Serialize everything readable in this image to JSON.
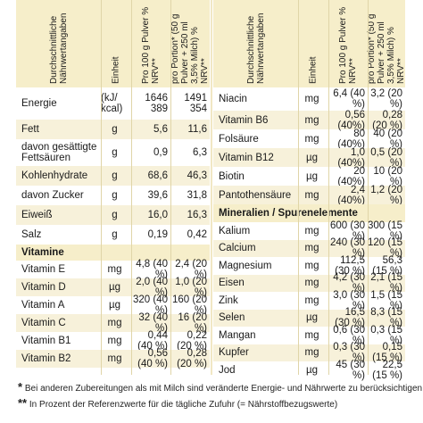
{
  "headers": {
    "name": "Durchschnittliche Nährwertangaben",
    "unit": "Einheit",
    "per100": "Pro 100 g Pulver % NRV**",
    "portion": "pro Portion* (50 g Pulver + 250 ml 3,5% Milch) % NRV**"
  },
  "left": {
    "rows": [
      {
        "name": "Energie",
        "unit": "(kJ/ kcal)",
        "v100": "1646\n389",
        "vp": "1491\n354"
      },
      {
        "name": "Fett",
        "unit": "g",
        "v100": "5,6",
        "vp": "11,6"
      },
      {
        "name": "davon gesättigte Fettsäuren",
        "unit": "g",
        "v100": "0,9",
        "vp": "6,3"
      },
      {
        "name": "Kohlenhydrate",
        "unit": "g",
        "v100": "68,6",
        "vp": "46,3"
      },
      {
        "name": "davon Zucker",
        "unit": "g",
        "v100": "39,6",
        "vp": "31,8"
      },
      {
        "name": "Eiweiß",
        "unit": "g",
        "v100": "16,0",
        "vp": "16,3"
      },
      {
        "name": "Salz",
        "unit": "g",
        "v100": "0,19",
        "vp": "0,42"
      }
    ],
    "section": "Vitamine",
    "vitamins": [
      {
        "name": "Vitamin E",
        "unit": "mg",
        "v100": "4,8 (40 %)",
        "vp": "2,4 (20 %)"
      },
      {
        "name": "Vitamin D",
        "unit": "µg",
        "v100": "2,0 (40 %)",
        "vp": "1,0 (20 %)"
      },
      {
        "name": "Vitamin A",
        "unit": "µg",
        "v100": "320 (40 %)",
        "vp": "160 (20 %)"
      },
      {
        "name": "Vitamin C",
        "unit": "mg",
        "v100": "32 (40 %)",
        "vp": "16 (20 %)"
      },
      {
        "name": "Vitamin B1",
        "unit": "mg",
        "v100": "0,44 (40 %)",
        "vp": "0,22 (20 %)"
      },
      {
        "name": "Vitamin B2",
        "unit": "mg",
        "v100": "0,56 (40 %)",
        "vp": "0,28 (20 %)"
      }
    ]
  },
  "right": {
    "rows": [
      {
        "name": "Niacin",
        "unit": "mg",
        "v100": "6,4 (40 %)",
        "vp": "3,2 (20 %)"
      },
      {
        "name": "Vitamin B6",
        "unit": "mg",
        "v100": "0,56 (40%)",
        "vp": "0,28 (20 %)"
      },
      {
        "name": "Folsäure",
        "unit": "mg",
        "v100": "80 (40%)",
        "vp": "40 (20 %)"
      },
      {
        "name": "Vitamin B12",
        "unit": "µg",
        "v100": "1,0 (40%)",
        "vp": "0,5 (20 %)"
      },
      {
        "name": "Biotin",
        "unit": "µg",
        "v100": "20 (40%)",
        "vp": "10 (20 %)"
      },
      {
        "name": "Pantothensäure",
        "unit": "mg",
        "v100": "2,4 (40%)",
        "vp": "1,2 (20 %)"
      }
    ],
    "section": "Mineralien / Spurenelemente",
    "minerals": [
      {
        "name": "Kalium",
        "unit": "mg",
        "v100": "600 (30 %)",
        "vp": "300 (15 %)"
      },
      {
        "name": "Calcium",
        "unit": "mg",
        "v100": "240 (30 %)",
        "vp": "120 (15 %)"
      },
      {
        "name": "Magnesium",
        "unit": "mg",
        "v100": "112,5 (30 %)",
        "vp": "56,3 (15 %)"
      },
      {
        "name": "Eisen",
        "unit": "mg",
        "v100": "4,2 (30 %)",
        "vp": "2,1 (15 %)"
      },
      {
        "name": "Zink",
        "unit": "mg",
        "v100": "3,0 (30 %)",
        "vp": "1,5 (15 %)"
      },
      {
        "name": "Selen",
        "unit": "µg",
        "v100": "16,5 (30 %)",
        "vp": "8,3 (15 %)"
      },
      {
        "name": "Mangan",
        "unit": "mg",
        "v100": "0,6 (30 %)",
        "vp": "0,3 (15 %)"
      },
      {
        "name": "Kupfer",
        "unit": "mg",
        "v100": "0,3 (30 %)",
        "vp": "0,15 (15 %)"
      },
      {
        "name": "Jod",
        "unit": "µg",
        "v100": "45 (30 %)",
        "vp": "22,5 (15 %)"
      }
    ]
  },
  "footnotes": {
    "star1": "*",
    "note1": "Bei anderen Zubereitungen als mit Milch sind veränderte Energie- und Nährwerte zu berücksichtigen",
    "star2": "**",
    "note2": "In Prozent der Referenzwerte für die tägliche Zufuhr (= Nährstoffbezugswerte)"
  }
}
